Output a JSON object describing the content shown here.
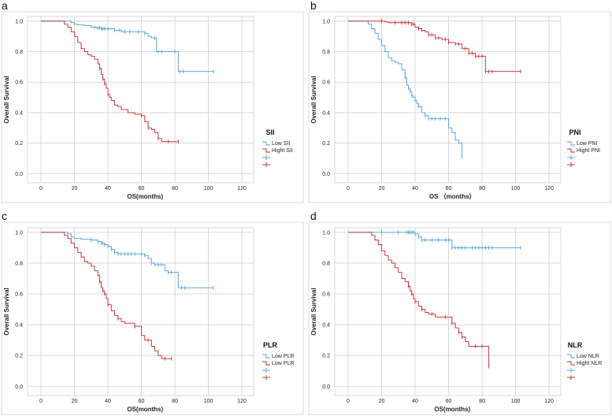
{
  "colors": {
    "low": "#4a9fd5",
    "high": "#c0262d"
  },
  "chart_data": [
    {
      "type": "line",
      "panel_label": "a",
      "legend_title": "SII",
      "xlabel": "OS(months)",
      "ylabel": "Overall Survival",
      "xticks": [
        "0",
        "20",
        "40",
        "60",
        "80",
        "100",
        "120"
      ],
      "yticks": [
        "0.0",
        "0.2",
        "0.4",
        "0.6",
        "0.8",
        "1.0"
      ],
      "xlim": [
        -8,
        127
      ],
      "ylim": [
        -0.06,
        1.03
      ],
      "series": [
        {
          "name": "Low SII",
          "color": "#4a9fd5",
          "x": [
            0,
            15,
            18,
            20,
            22,
            26,
            30,
            33,
            36,
            44,
            48,
            62,
            64,
            66,
            69,
            74,
            78,
            81,
            82,
            103
          ],
          "y": [
            1,
            1,
            0.99,
            0.98,
            0.975,
            0.97,
            0.96,
            0.955,
            0.95,
            0.94,
            0.93,
            0.92,
            0.9,
            0.89,
            0.8,
            0.8,
            0.8,
            0.8,
            0.67,
            0.67
          ],
          "censor_x": [
            32,
            34,
            35,
            36,
            37,
            38,
            40,
            44,
            47,
            50,
            53,
            58,
            62,
            68,
            70,
            72,
            80,
            83,
            85,
            103
          ]
        },
        {
          "name": "Hight SII",
          "color": "#c0262d",
          "x": [
            0,
            12,
            14,
            16,
            18,
            20,
            22,
            24,
            26,
            28,
            30,
            32,
            34,
            35,
            36,
            37,
            38,
            39,
            40,
            41,
            42,
            44,
            46,
            48,
            52,
            56,
            60,
            62,
            64,
            66,
            68,
            70,
            72,
            82
          ],
          "y": [
            1,
            1,
            0.98,
            0.96,
            0.93,
            0.9,
            0.86,
            0.82,
            0.8,
            0.78,
            0.77,
            0.75,
            0.72,
            0.69,
            0.65,
            0.62,
            0.59,
            0.56,
            0.52,
            0.5,
            0.48,
            0.45,
            0.44,
            0.42,
            0.4,
            0.39,
            0.38,
            0.34,
            0.3,
            0.29,
            0.27,
            0.23,
            0.21,
            0.21
          ],
          "censor_x": [
            35,
            37,
            38,
            40,
            60,
            64,
            70,
            76,
            82
          ]
        }
      ],
      "legend": [
        "Low SII",
        "Hight SII",
        "",
        ""
      ]
    },
    {
      "type": "line",
      "panel_label": "b",
      "legend_title": "PNI",
      "xlabel": "OS （months）",
      "ylabel": "Overall Survival",
      "xticks": [
        "0",
        "20",
        "40",
        "60",
        "80",
        "100",
        "120"
      ],
      "yticks": [
        "0.0",
        "0.2",
        "0.4",
        "0.6",
        "0.8",
        "1.0"
      ],
      "xlim": [
        -8,
        127
      ],
      "ylim": [
        -0.06,
        1.03
      ],
      "series": [
        {
          "name": "Low PNI",
          "color": "#4a9fd5",
          "x": [
            0,
            10,
            12,
            14,
            16,
            18,
            20,
            22,
            24,
            26,
            28,
            30,
            32,
            34,
            35,
            36,
            37,
            38,
            39,
            40,
            41,
            42,
            44,
            46,
            48,
            54,
            58,
            60,
            62,
            64,
            66,
            68
          ],
          "y": [
            1,
            1,
            0.98,
            0.95,
            0.92,
            0.88,
            0.84,
            0.8,
            0.76,
            0.74,
            0.73,
            0.72,
            0.68,
            0.63,
            0.58,
            0.56,
            0.54,
            0.51,
            0.5,
            0.48,
            0.46,
            0.44,
            0.4,
            0.38,
            0.36,
            0.36,
            0.36,
            0.3,
            0.27,
            0.22,
            0.2,
            0.11
          ],
          "censor_x": [
            34,
            36,
            37,
            38,
            40,
            42,
            46,
            48,
            50,
            52,
            55,
            58,
            68
          ]
        },
        {
          "name": "Hight PNI",
          "color": "#c0262d",
          "x": [
            0,
            20,
            22,
            24,
            26,
            34,
            38,
            40,
            42,
            44,
            46,
            48,
            52,
            56,
            60,
            64,
            68,
            72,
            76,
            82,
            103
          ],
          "y": [
            1,
            1,
            0.995,
            0.99,
            0.99,
            0.99,
            0.98,
            0.96,
            0.95,
            0.94,
            0.93,
            0.91,
            0.89,
            0.88,
            0.86,
            0.85,
            0.82,
            0.79,
            0.77,
            0.67,
            0.67
          ],
          "censor_x": [
            20,
            28,
            32,
            34,
            36,
            38,
            39,
            42,
            44,
            48,
            50,
            52,
            54,
            58,
            60,
            64,
            66,
            70,
            72,
            74,
            76,
            78,
            80,
            82,
            84,
            86,
            103
          ]
        }
      ],
      "legend": [
        "Low PNI",
        "Hight PNI",
        "",
        ""
      ]
    },
    {
      "type": "line",
      "panel_label": "c",
      "legend_title": "PLR",
      "xlabel": "OS(months)",
      "ylabel": "Overall Survival",
      "xticks": [
        "0",
        "20",
        "40",
        "60",
        "80",
        "100",
        "120"
      ],
      "yticks": [
        "0.0",
        "0.2",
        "0.4",
        "0.6",
        "0.8",
        "1.0"
      ],
      "xlim": [
        -8,
        127
      ],
      "ylim": [
        -0.06,
        1.03
      ],
      "series": [
        {
          "name": "Low PLR",
          "color": "#4a9fd5",
          "x": [
            0,
            14,
            16,
            18,
            20,
            24,
            30,
            34,
            36,
            38,
            40,
            42,
            44,
            46,
            48,
            52,
            56,
            60,
            62,
            64,
            66,
            68,
            70,
            74,
            76,
            80,
            82,
            103
          ],
          "y": [
            1,
            1,
            0.99,
            0.97,
            0.96,
            0.955,
            0.95,
            0.94,
            0.93,
            0.92,
            0.91,
            0.89,
            0.87,
            0.86,
            0.86,
            0.86,
            0.86,
            0.86,
            0.85,
            0.83,
            0.8,
            0.79,
            0.79,
            0.75,
            0.74,
            0.74,
            0.64,
            0.64
          ],
          "censor_x": [
            30,
            34,
            36,
            37,
            38,
            40,
            42,
            44,
            46,
            48,
            50,
            52,
            54,
            56,
            60,
            62,
            66,
            68,
            70,
            72,
            76,
            78,
            84,
            86,
            103
          ]
        },
        {
          "name": "Low PLR",
          "color": "#c0262d",
          "x": [
            0,
            12,
            14,
            16,
            18,
            20,
            22,
            24,
            26,
            28,
            30,
            32,
            34,
            35,
            36,
            37,
            38,
            39,
            40,
            42,
            44,
            46,
            48,
            50,
            56,
            60,
            62,
            66,
            68,
            70,
            72,
            78
          ],
          "y": [
            1,
            1,
            0.98,
            0.96,
            0.93,
            0.9,
            0.87,
            0.84,
            0.81,
            0.8,
            0.78,
            0.75,
            0.72,
            0.68,
            0.64,
            0.62,
            0.6,
            0.57,
            0.53,
            0.49,
            0.46,
            0.44,
            0.42,
            0.41,
            0.39,
            0.33,
            0.3,
            0.26,
            0.23,
            0.2,
            0.18,
            0.18
          ],
          "censor_x": [
            35,
            37,
            38,
            40,
            46,
            56,
            64,
            74,
            78
          ]
        }
      ],
      "legend": [
        "Low PLR",
        "Low PLR",
        "",
        ""
      ]
    },
    {
      "type": "line",
      "panel_label": "d",
      "legend_title": "NLR",
      "xlabel": "OS(months)",
      "ylabel": "Overall Survival",
      "xticks": [
        "0",
        "20",
        "40",
        "60",
        "80",
        "100",
        "120"
      ],
      "yticks": [
        "0.0",
        "0.2",
        "0.4",
        "0.6",
        "0.8",
        "1.0"
      ],
      "xlim": [
        -8,
        127
      ],
      "ylim": [
        -0.06,
        1.03
      ],
      "series": [
        {
          "name": "Low NLR",
          "color": "#4a9fd5",
          "x": [
            0,
            38,
            40,
            42,
            44,
            60,
            62,
            103
          ],
          "y": [
            1,
            1,
            0.99,
            0.97,
            0.95,
            0.95,
            0.9,
            0.9
          ],
          "censor_x": [
            20,
            30,
            35,
            36,
            37,
            38,
            39,
            40,
            42,
            44,
            46,
            50,
            54,
            58,
            60,
            62,
            64,
            66,
            68,
            70,
            74,
            76,
            78,
            80,
            82,
            84,
            86,
            103
          ]
        },
        {
          "name": "Hight NLR",
          "color": "#c0262d",
          "x": [
            0,
            12,
            14,
            16,
            18,
            20,
            22,
            24,
            26,
            28,
            30,
            32,
            34,
            36,
            37,
            38,
            39,
            40,
            42,
            44,
            46,
            48,
            52,
            56,
            60,
            62,
            64,
            66,
            68,
            70,
            72,
            82,
            84
          ],
          "y": [
            1,
            1,
            0.98,
            0.95,
            0.92,
            0.88,
            0.85,
            0.82,
            0.8,
            0.77,
            0.74,
            0.7,
            0.68,
            0.65,
            0.62,
            0.6,
            0.57,
            0.55,
            0.52,
            0.5,
            0.48,
            0.47,
            0.45,
            0.45,
            0.45,
            0.41,
            0.38,
            0.35,
            0.32,
            0.29,
            0.26,
            0.26,
            0.13
          ],
          "censor_x": [
            36,
            38,
            40,
            44,
            50,
            58,
            62,
            66,
            68,
            76,
            80,
            84
          ]
        }
      ],
      "legend": [
        "Low NLR",
        "Hight NLR",
        "",
        ""
      ]
    }
  ]
}
